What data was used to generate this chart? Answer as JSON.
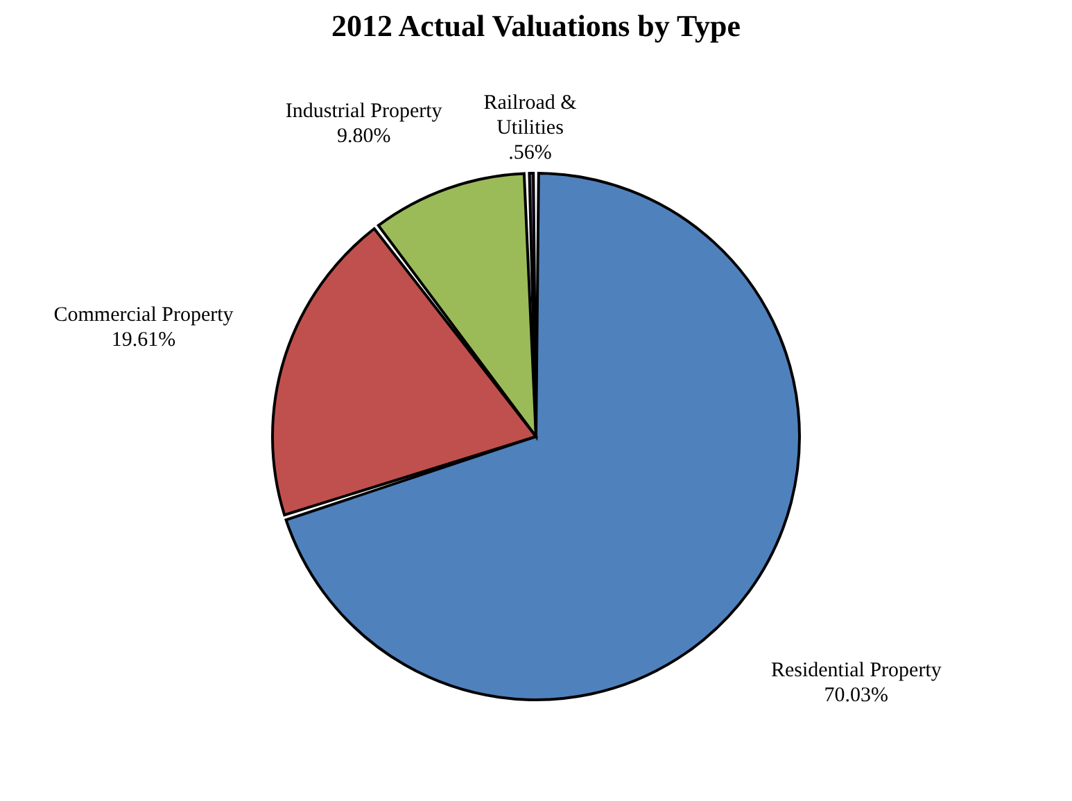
{
  "chart_data": {
    "type": "pie",
    "title": "2012 Actual Valuations by Type",
    "categories": [
      "Residential Property",
      "Commercial Property",
      "Industrial Property",
      "Railroad & Utilities"
    ],
    "values": [
      70.03,
      19.61,
      9.8,
      0.56
    ],
    "value_labels": [
      "70.03%",
      "19.61%",
      "9.80%",
      ".56%"
    ],
    "colors": [
      "#4f81bd",
      "#c0504d",
      "#9bbb59",
      "#8064a2"
    ],
    "legend": false
  }
}
